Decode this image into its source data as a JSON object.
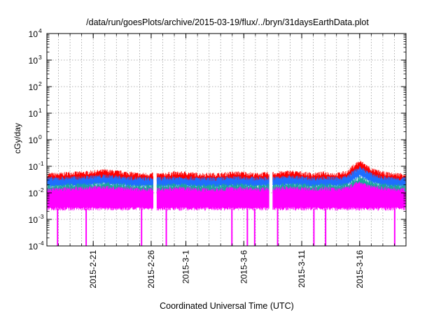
{
  "chart_data": {
    "type": "area",
    "title": "/data/run/goesPlots/archive/2015-03-19/flux/../bryn/31daysEarthData.plot",
    "xlabel": "Coordinated Universal Time (UTC)",
    "ylabel": "cGy/day",
    "y_scale": "log",
    "ylim": [
      0.0001,
      10000
    ],
    "xlim": [
      "2015-02-17",
      "2015-03-20"
    ],
    "grid": true,
    "y_ticks": [
      {
        "value": 0.0001,
        "base": "10",
        "exp": "-4"
      },
      {
        "value": 0.001,
        "base": "10",
        "exp": "-3"
      },
      {
        "value": 0.01,
        "base": "10",
        "exp": "-2"
      },
      {
        "value": 0.1,
        "base": "10",
        "exp": "-1"
      },
      {
        "value": 1,
        "base": "10",
        "exp": "0"
      },
      {
        "value": 10,
        "base": "10",
        "exp": "1"
      },
      {
        "value": 100,
        "base": "10",
        "exp": "2"
      },
      {
        "value": 1000,
        "base": "10",
        "exp": "3"
      },
      {
        "value": 10000,
        "base": "10",
        "exp": "4"
      }
    ],
    "x_ticks": [
      "2015-2-21",
      "2015-2-26",
      "2015-3-1",
      "2015-3-6",
      "2015-3-11",
      "2015-3-16"
    ],
    "x_tick_dates": [
      "2015-02-21",
      "2015-02-26",
      "2015-03-01",
      "2015-03-06",
      "2015-03-11",
      "2015-03-16"
    ],
    "data_gaps": [
      [
        "2015-02-26",
        "2015-02-26"
      ],
      [
        "2015-03-08",
        "2015-03-08"
      ]
    ],
    "series": [
      {
        "color": "#ff0000",
        "x": [
          "2015-02-18",
          "2015-02-19",
          "2015-02-20",
          "2015-02-21",
          "2015-02-22",
          "2015-02-23",
          "2015-02-24",
          "2015-02-25",
          "2015-02-27",
          "2015-02-28",
          "2015-03-01",
          "2015-03-02",
          "2015-03-03",
          "2015-03-04",
          "2015-03-05",
          "2015-03-06",
          "2015-03-07",
          "2015-03-09",
          "2015-03-10",
          "2015-03-11",
          "2015-03-12",
          "2015-03-13",
          "2015-03-14",
          "2015-03-15",
          "2015-03-16",
          "2015-03-17",
          "2015-03-18",
          "2015-03-19"
        ],
        "values": [
          0.04,
          0.045,
          0.045,
          0.05,
          0.055,
          0.05,
          0.045,
          0.04,
          0.04,
          0.045,
          0.045,
          0.04,
          0.04,
          0.04,
          0.045,
          0.045,
          0.04,
          0.045,
          0.05,
          0.045,
          0.04,
          0.045,
          0.04,
          0.05,
          0.12,
          0.06,
          0.045,
          0.04
        ]
      },
      {
        "color": "#1e6eff",
        "x": [
          "2015-02-18",
          "2015-02-19",
          "2015-02-20",
          "2015-02-21",
          "2015-02-22",
          "2015-02-23",
          "2015-02-24",
          "2015-02-25",
          "2015-02-27",
          "2015-02-28",
          "2015-03-01",
          "2015-03-02",
          "2015-03-03",
          "2015-03-04",
          "2015-03-05",
          "2015-03-06",
          "2015-03-07",
          "2015-03-09",
          "2015-03-10",
          "2015-03-11",
          "2015-03-12",
          "2015-03-13",
          "2015-03-14",
          "2015-03-15",
          "2015-03-16",
          "2015-03-17",
          "2015-03-18",
          "2015-03-19"
        ],
        "values": [
          0.028,
          0.03,
          0.03,
          0.033,
          0.035,
          0.033,
          0.03,
          0.028,
          0.028,
          0.03,
          0.03,
          0.028,
          0.027,
          0.028,
          0.03,
          0.03,
          0.028,
          0.03,
          0.033,
          0.03,
          0.028,
          0.03,
          0.028,
          0.033,
          0.07,
          0.04,
          0.03,
          0.028
        ]
      },
      {
        "color": "#1aa89a",
        "x": [
          "2015-02-18",
          "2015-02-19",
          "2015-02-20",
          "2015-02-21",
          "2015-02-22",
          "2015-02-23",
          "2015-02-24",
          "2015-02-25",
          "2015-02-27",
          "2015-02-28",
          "2015-03-01",
          "2015-03-02",
          "2015-03-03",
          "2015-03-04",
          "2015-03-05",
          "2015-03-06",
          "2015-03-07",
          "2015-03-09",
          "2015-03-10",
          "2015-03-11",
          "2015-03-12",
          "2015-03-13",
          "2015-03-14",
          "2015-03-15",
          "2015-03-16",
          "2015-03-17",
          "2015-03-18",
          "2015-03-19"
        ],
        "values": [
          0.015,
          0.016,
          0.016,
          0.017,
          0.018,
          0.017,
          0.016,
          0.015,
          0.015,
          0.016,
          0.016,
          0.015,
          0.015,
          0.015,
          0.016,
          0.016,
          0.015,
          0.016,
          0.017,
          0.016,
          0.015,
          0.016,
          0.015,
          0.017,
          0.03,
          0.02,
          0.016,
          0.015
        ]
      },
      {
        "color": "#ff00ff",
        "x": [
          "2015-02-18",
          "2015-02-19",
          "2015-02-20",
          "2015-02-21",
          "2015-02-22",
          "2015-02-23",
          "2015-02-24",
          "2015-02-25",
          "2015-02-27",
          "2015-02-28",
          "2015-03-01",
          "2015-03-02",
          "2015-03-03",
          "2015-03-04",
          "2015-03-05",
          "2015-03-06",
          "2015-03-07",
          "2015-03-09",
          "2015-03-10",
          "2015-03-11",
          "2015-03-12",
          "2015-03-13",
          "2015-03-14",
          "2015-03-15",
          "2015-03-16",
          "2015-03-17",
          "2015-03-18",
          "2015-03-19"
        ],
        "values": [
          0.011,
          0.012,
          0.012,
          0.013,
          0.013,
          0.012,
          0.012,
          0.011,
          0.011,
          0.012,
          0.012,
          0.011,
          0.011,
          0.011,
          0.012,
          0.012,
          0.011,
          0.012,
          0.013,
          0.012,
          0.011,
          0.012,
          0.011,
          0.013,
          0.02,
          0.014,
          0.012,
          0.011
        ],
        "floor": 0.0025,
        "dropouts": [
          "2015-02-18",
          "2015-02-20",
          "2015-02-25",
          "2015-02-27",
          "2015-03-05",
          "2015-03-06",
          "2015-03-07",
          "2015-03-09",
          "2015-03-12",
          "2015-03-13",
          "2015-03-19"
        ]
      }
    ]
  }
}
